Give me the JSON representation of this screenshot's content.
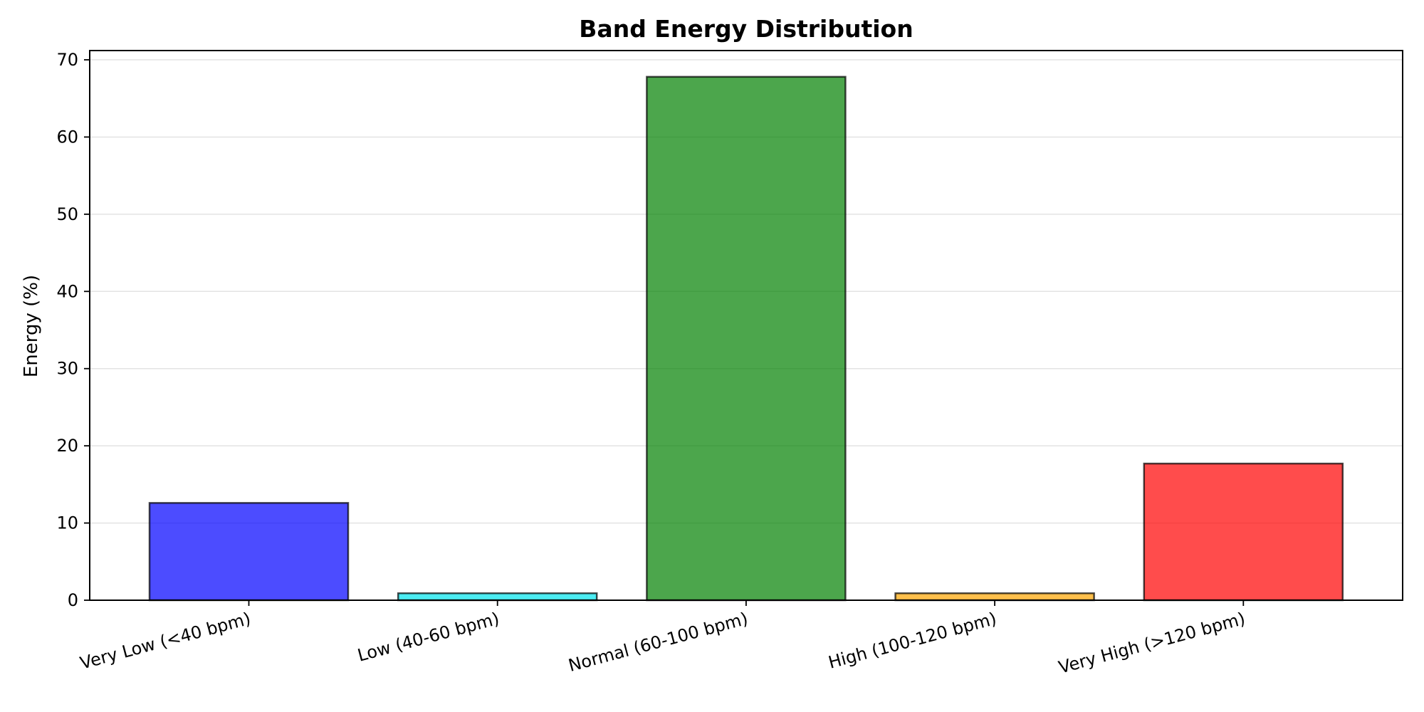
{
  "chart_data": {
    "type": "bar",
    "title": "Band Energy Distribution",
    "xlabel": "",
    "ylabel": "Energy (%)",
    "categories": [
      "Very Low (<40 bpm)",
      "Low (40-60 bpm)",
      "Normal (60-100 bpm)",
      "High (100-120 bpm)",
      "Very High (>120 bpm)"
    ],
    "values": [
      12.6,
      0.9,
      67.8,
      0.9,
      17.7
    ],
    "colors": [
      "#0000ff",
      "#00e5ee",
      "#008000",
      "#ffa500",
      "#ff0000"
    ],
    "ylim": [
      0,
      71.2
    ],
    "yticks": [
      0,
      10,
      20,
      30,
      40,
      50,
      60,
      70
    ],
    "grid": "y",
    "legend": "none"
  }
}
